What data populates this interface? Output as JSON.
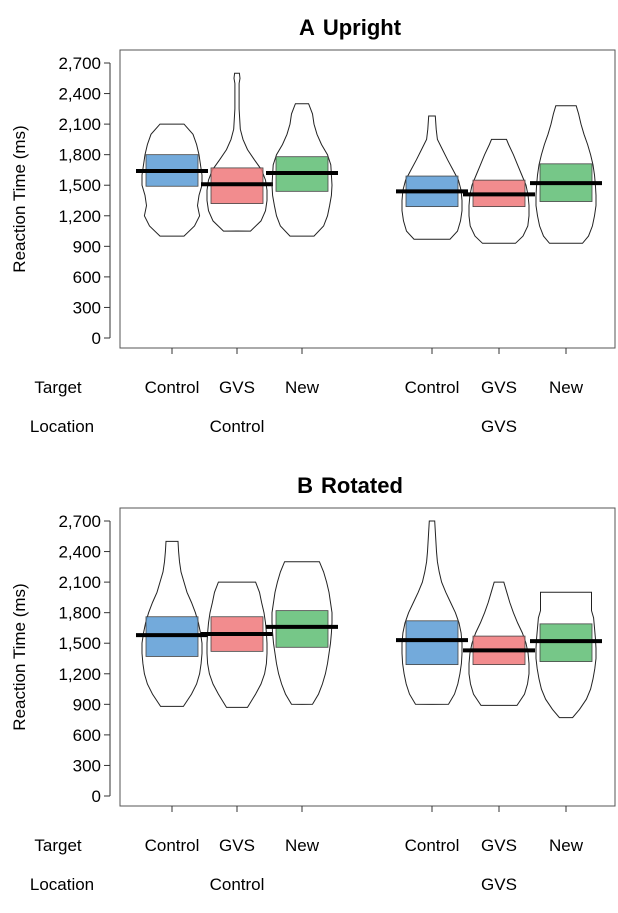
{
  "chart_data": [
    {
      "type": "violin",
      "title_letter": "A",
      "title": "Upright",
      "ylabel": "Reaction Time (ms)",
      "ylim": [
        0,
        2700
      ],
      "yticks": [
        "0",
        "300",
        "600",
        "900",
        "1,200",
        "1,500",
        "1,800",
        "2,100",
        "2,400",
        "2,700"
      ],
      "row_labels": {
        "target": "Target",
        "location": "Location"
      },
      "groups": [
        {
          "location": "Control",
          "items": [
            {
              "target": "Control",
              "color": "#5b9bd5",
              "mean": 1640,
              "box": [
                1490,
                1800
              ],
              "violin": [
                [
                  1000,
                  0.4
                ],
                [
                  1100,
                  0.75
                ],
                [
                  1200,
                  0.92
                ],
                [
                  1300,
                  0.85
                ],
                [
                  1400,
                  0.9
                ],
                [
                  1500,
                  1.0
                ],
                [
                  1600,
                  1.0
                ],
                [
                  1700,
                  0.95
                ],
                [
                  1800,
                  0.9
                ],
                [
                  1900,
                  0.82
                ],
                [
                  2000,
                  0.7
                ],
                [
                  2100,
                  0.4
                ]
              ]
            },
            {
              "target": "GVS",
              "color": "#f0787a",
              "mean": 1510,
              "box": [
                1320,
                1670
              ],
              "violin": [
                [
                  1050,
                  0.45
                ],
                [
                  1150,
                  0.8
                ],
                [
                  1250,
                  0.95
                ],
                [
                  1350,
                  1.0
                ],
                [
                  1450,
                  1.0
                ],
                [
                  1550,
                  0.95
                ],
                [
                  1650,
                  0.82
                ],
                [
                  1750,
                  0.58
                ],
                [
                  1850,
                  0.35
                ],
                [
                  1950,
                  0.2
                ],
                [
                  2050,
                  0.11
                ],
                [
                  2250,
                  0.07
                ],
                [
                  2500,
                  0.07
                ],
                [
                  2550,
                  0.1
                ],
                [
                  2600,
                  0.08
                ]
              ]
            },
            {
              "target": "New",
              "color": "#5ebd73",
              "mean": 1620,
              "box": [
                1440,
                1780
              ],
              "violin": [
                [
                  1000,
                  0.4
                ],
                [
                  1100,
                  0.72
                ],
                [
                  1200,
                  0.85
                ],
                [
                  1300,
                  0.92
                ],
                [
                  1400,
                  0.98
                ],
                [
                  1500,
                  1.0
                ],
                [
                  1600,
                  0.98
                ],
                [
                  1700,
                  0.96
                ],
                [
                  1800,
                  0.85
                ],
                [
                  1900,
                  0.65
                ],
                [
                  2000,
                  0.5
                ],
                [
                  2100,
                  0.4
                ],
                [
                  2200,
                  0.35
                ],
                [
                  2300,
                  0.22
                ]
              ]
            }
          ]
        },
        {
          "location": "GVS",
          "items": [
            {
              "target": "Control",
              "color": "#5b9bd5",
              "mean": 1440,
              "box": [
                1290,
                1590
              ],
              "violin": [
                [
                  970,
                  0.6
                ],
                [
                  1050,
                  0.85
                ],
                [
                  1150,
                  0.95
                ],
                [
                  1250,
                  1.0
                ],
                [
                  1350,
                  1.0
                ],
                [
                  1450,
                  0.97
                ],
                [
                  1550,
                  0.88
                ],
                [
                  1650,
                  0.7
                ],
                [
                  1750,
                  0.52
                ],
                [
                  1850,
                  0.35
                ],
                [
                  1950,
                  0.18
                ],
                [
                  2050,
                  0.14
                ],
                [
                  2180,
                  0.11
                ]
              ]
            },
            {
              "target": "GVS",
              "color": "#f0787a",
              "mean": 1410,
              "box": [
                1290,
                1550
              ],
              "violin": [
                [
                  930,
                  0.55
                ],
                [
                  1000,
                  0.8
                ],
                [
                  1100,
                  0.96
                ],
                [
                  1200,
                  1.0
                ],
                [
                  1300,
                  1.0
                ],
                [
                  1400,
                  0.97
                ],
                [
                  1500,
                  0.9
                ],
                [
                  1600,
                  0.76
                ],
                [
                  1700,
                  0.62
                ],
                [
                  1800,
                  0.48
                ],
                [
                  1900,
                  0.32
                ],
                [
                  1950,
                  0.25
                ]
              ]
            },
            {
              "target": "New",
              "color": "#5ebd73",
              "mean": 1520,
              "box": [
                1340,
                1710
              ],
              "violin": [
                [
                  930,
                  0.55
                ],
                [
                  1000,
                  0.75
                ],
                [
                  1100,
                  0.88
                ],
                [
                  1200,
                  0.95
                ],
                [
                  1300,
                  1.0
                ],
                [
                  1400,
                  1.0
                ],
                [
                  1500,
                  0.98
                ],
                [
                  1600,
                  0.95
                ],
                [
                  1700,
                  0.9
                ],
                [
                  1800,
                  0.82
                ],
                [
                  1900,
                  0.72
                ],
                [
                  2000,
                  0.6
                ],
                [
                  2100,
                  0.5
                ],
                [
                  2200,
                  0.42
                ],
                [
                  2280,
                  0.34
                ]
              ]
            }
          ]
        }
      ]
    },
    {
      "type": "violin",
      "title_letter": "B",
      "title": "Rotated",
      "ylabel": "Reaction Time (ms)",
      "ylim": [
        0,
        2700
      ],
      "yticks": [
        "0",
        "300",
        "600",
        "900",
        "1,200",
        "1,500",
        "1,800",
        "2,100",
        "2,400",
        "2,700"
      ],
      "row_labels": {
        "target": "Target",
        "location": "Location"
      },
      "groups": [
        {
          "location": "Control",
          "items": [
            {
              "target": "Control",
              "color": "#5b9bd5",
              "mean": 1580,
              "box": [
                1370,
                1760
              ],
              "violin": [
                [
                  880,
                  0.38
                ],
                [
                  1000,
                  0.65
                ],
                [
                  1100,
                  0.82
                ],
                [
                  1200,
                  0.92
                ],
                [
                  1300,
                  0.97
                ],
                [
                  1400,
                  1.0
                ],
                [
                  1500,
                  1.0
                ],
                [
                  1600,
                  0.95
                ],
                [
                  1700,
                  0.88
                ],
                [
                  1800,
                  0.78
                ],
                [
                  1900,
                  0.65
                ],
                [
                  2000,
                  0.5
                ],
                [
                  2100,
                  0.4
                ],
                [
                  2200,
                  0.3
                ],
                [
                  2300,
                  0.25
                ],
                [
                  2400,
                  0.22
                ],
                [
                  2500,
                  0.2
                ]
              ]
            },
            {
              "target": "GVS",
              "color": "#f0787a",
              "mean": 1590,
              "box": [
                1420,
                1760
              ],
              "violin": [
                [
                  870,
                  0.35
                ],
                [
                  1000,
                  0.62
                ],
                [
                  1100,
                  0.8
                ],
                [
                  1200,
                  0.92
                ],
                [
                  1300,
                  0.98
                ],
                [
                  1400,
                  1.0
                ],
                [
                  1500,
                  1.0
                ],
                [
                  1600,
                  0.98
                ],
                [
                  1700,
                  0.95
                ],
                [
                  1800,
                  0.9
                ],
                [
                  1900,
                  0.82
                ],
                [
                  2000,
                  0.75
                ],
                [
                  2100,
                  0.62
                ]
              ]
            },
            {
              "target": "New",
              "color": "#5ebd73",
              "mean": 1660,
              "box": [
                1460,
                1820
              ],
              "violin": [
                [
                  900,
                  0.35
                ],
                [
                  1000,
                  0.55
                ],
                [
                  1100,
                  0.68
                ],
                [
                  1200,
                  0.78
                ],
                [
                  1300,
                  0.85
                ],
                [
                  1400,
                  0.9
                ],
                [
                  1500,
                  0.95
                ],
                [
                  1600,
                  0.98
                ],
                [
                  1700,
                  1.0
                ],
                [
                  1800,
                  1.0
                ],
                [
                  1900,
                  0.95
                ],
                [
                  2000,
                  0.9
                ],
                [
                  2100,
                  0.82
                ],
                [
                  2200,
                  0.72
                ],
                [
                  2300,
                  0.58
                ]
              ]
            }
          ]
        },
        {
          "location": "GVS",
          "items": [
            {
              "target": "Control",
              "color": "#5b9bd5",
              "mean": 1530,
              "box": [
                1290,
                1720
              ],
              "violin": [
                [
                  900,
                  0.55
                ],
                [
                  1000,
                  0.75
                ],
                [
                  1100,
                  0.86
                ],
                [
                  1200,
                  0.93
                ],
                [
                  1300,
                  0.98
                ],
                [
                  1400,
                  1.0
                ],
                [
                  1500,
                  1.0
                ],
                [
                  1600,
                  0.97
                ],
                [
                  1700,
                  0.9
                ],
                [
                  1800,
                  0.78
                ],
                [
                  1900,
                  0.62
                ],
                [
                  2000,
                  0.46
                ],
                [
                  2100,
                  0.32
                ],
                [
                  2200,
                  0.24
                ],
                [
                  2300,
                  0.18
                ],
                [
                  2400,
                  0.15
                ],
                [
                  2550,
                  0.12
                ],
                [
                  2700,
                  0.09
                ]
              ]
            },
            {
              "target": "GVS",
              "color": "#f0787a",
              "mean": 1430,
              "box": [
                1290,
                1570
              ],
              "violin": [
                [
                  890,
                  0.6
                ],
                [
                  1000,
                  0.85
                ],
                [
                  1100,
                  0.95
                ],
                [
                  1200,
                  1.0
                ],
                [
                  1300,
                  1.0
                ],
                [
                  1400,
                  0.97
                ],
                [
                  1500,
                  0.9
                ],
                [
                  1600,
                  0.78
                ],
                [
                  1700,
                  0.62
                ],
                [
                  1800,
                  0.48
                ],
                [
                  1900,
                  0.36
                ],
                [
                  2000,
                  0.26
                ],
                [
                  2100,
                  0.16
                ]
              ]
            },
            {
              "target": "New",
              "color": "#5ebd73",
              "mean": 1520,
              "box": [
                1320,
                1690
              ],
              "violin": [
                [
                  770,
                  0.22
                ],
                [
                  850,
                  0.45
                ],
                [
                  950,
                  0.68
                ],
                [
                  1050,
                  0.82
                ],
                [
                  1150,
                  0.9
                ],
                [
                  1250,
                  0.96
                ],
                [
                  1350,
                  1.0
                ],
                [
                  1450,
                  1.0
                ],
                [
                  1550,
                  0.98
                ],
                [
                  1650,
                  0.95
                ],
                [
                  1750,
                  0.92
                ],
                [
                  1820,
                  0.85
                ],
                [
                  1870,
                  0.85
                ],
                [
                  1920,
                  0.85
                ],
                [
                  2000,
                  0.85
                ]
              ]
            }
          ]
        }
      ]
    }
  ]
}
